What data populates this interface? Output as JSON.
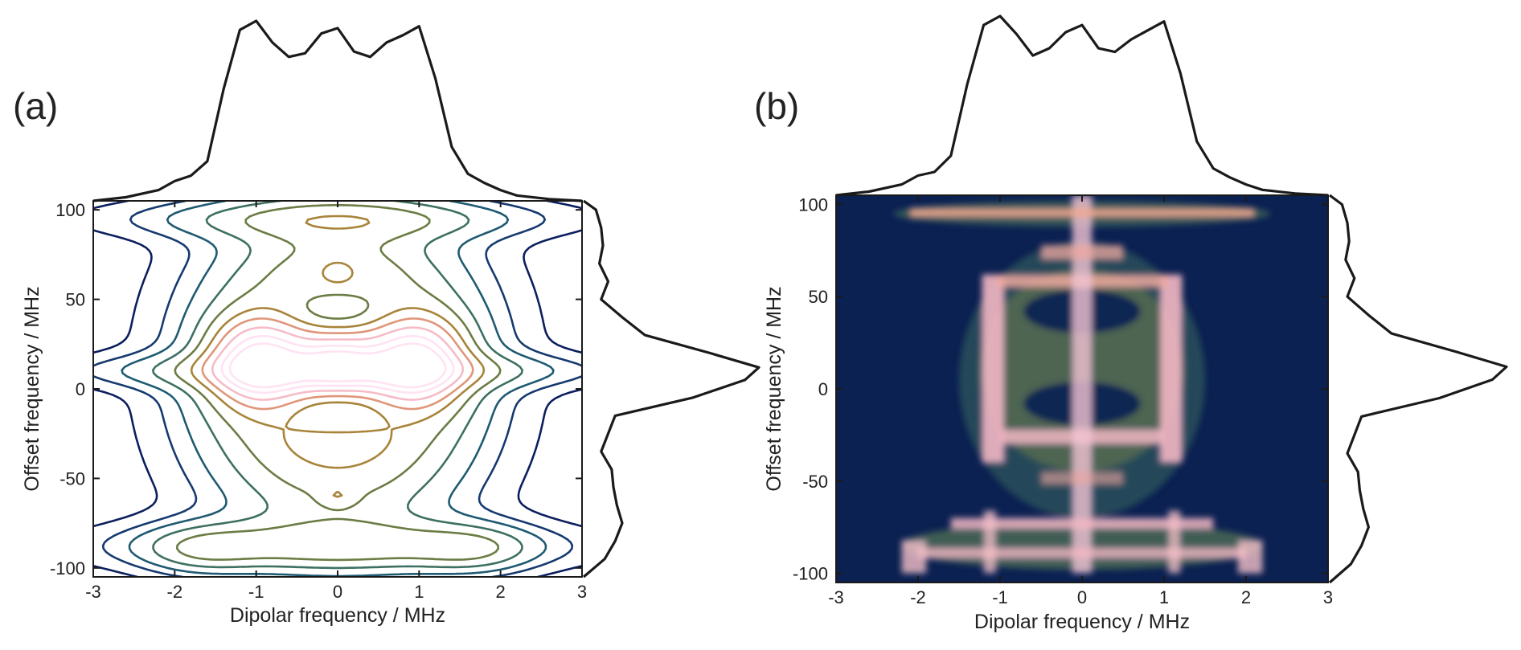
{
  "colors": {
    "background_dark": "#0b2152",
    "contour_scale": [
      "#0b1f5e",
      "#163a6f",
      "#1f5a72",
      "#3d7062",
      "#6b7c44",
      "#a8843a",
      "#e0967a",
      "#f5bcc8",
      "#ffe3f3"
    ],
    "projection_line": "#1a1a1a",
    "axis": "#1a1a1a"
  },
  "chart_data": [
    {
      "id": "a",
      "panel_label": "(a)",
      "type": "contour",
      "xlabel": "Dipolar frequency / MHz",
      "ylabel": "Offset frequency / MHz",
      "xlim": [
        -3,
        3
      ],
      "ylim": [
        -105,
        105
      ],
      "xticks": [
        -3,
        -2,
        -1,
        0,
        1,
        2,
        3
      ],
      "yticks": [
        -100,
        -50,
        0,
        50,
        100
      ],
      "contour_levels": [
        0.05,
        0.1,
        0.15,
        0.22,
        0.3,
        0.4,
        0.5,
        0.62,
        0.75,
        0.87
      ],
      "top_projection": {
        "x": [
          -3,
          -2.6,
          -2.2,
          -2.0,
          -1.8,
          -1.6,
          -1.4,
          -1.2,
          -1.0,
          -0.8,
          -0.6,
          -0.4,
          -0.2,
          0,
          0.2,
          0.4,
          0.6,
          0.8,
          1.0,
          1.2,
          1.4,
          1.6,
          1.8,
          2.0,
          2.2,
          2.6,
          3
        ],
        "y": [
          0.0,
          0.02,
          0.06,
          0.11,
          0.14,
          0.22,
          0.62,
          0.95,
          1.0,
          0.88,
          0.8,
          0.82,
          0.93,
          0.96,
          0.83,
          0.8,
          0.88,
          0.92,
          0.97,
          0.68,
          0.3,
          0.15,
          0.1,
          0.06,
          0.03,
          0.01,
          0.0
        ]
      },
      "right_projection": {
        "offset": [
          -105,
          -95,
          -85,
          -75,
          -65,
          -55,
          -45,
          -35,
          -25,
          -15,
          -5,
          5,
          12,
          20,
          30,
          40,
          50,
          60,
          70,
          80,
          90,
          100,
          105
        ],
        "value": [
          0.0,
          0.12,
          0.18,
          0.22,
          0.19,
          0.17,
          0.16,
          0.1,
          0.14,
          0.18,
          0.62,
          0.92,
          1.0,
          0.72,
          0.35,
          0.22,
          0.1,
          0.14,
          0.09,
          0.11,
          0.1,
          0.07,
          0.0
        ]
      }
    },
    {
      "id": "b",
      "panel_label": "(b)",
      "type": "heatmap",
      "xlabel": "Dipolar frequency / MHz",
      "ylabel": "Offset frequency / MHz",
      "xlim": [
        -3,
        3
      ],
      "ylim": [
        -105,
        105
      ],
      "xticks": [
        -3,
        -2,
        -1,
        0,
        1,
        2,
        3
      ],
      "yticks": [
        -100,
        -50,
        0,
        50,
        100
      ],
      "top_projection": {
        "x": [
          -3,
          -2.6,
          -2.2,
          -2.0,
          -1.8,
          -1.6,
          -1.4,
          -1.2,
          -1.0,
          -0.8,
          -0.6,
          -0.4,
          -0.2,
          0,
          0.2,
          0.4,
          0.6,
          0.8,
          1.0,
          1.2,
          1.4,
          1.6,
          1.8,
          2.0,
          2.2,
          2.6,
          3
        ],
        "y": [
          0.0,
          0.02,
          0.06,
          0.11,
          0.13,
          0.22,
          0.62,
          0.95,
          1.0,
          0.9,
          0.78,
          0.82,
          0.91,
          0.95,
          0.82,
          0.8,
          0.87,
          0.92,
          0.97,
          0.68,
          0.3,
          0.15,
          0.1,
          0.06,
          0.03,
          0.01,
          0.0
        ]
      },
      "right_projection": {
        "offset": [
          -105,
          -95,
          -85,
          -75,
          -65,
          -55,
          -45,
          -35,
          -25,
          -15,
          -5,
          5,
          12,
          20,
          30,
          40,
          50,
          60,
          70,
          80,
          90,
          100,
          105
        ],
        "value": [
          0.0,
          0.12,
          0.18,
          0.22,
          0.19,
          0.17,
          0.16,
          0.1,
          0.14,
          0.18,
          0.62,
          0.92,
          1.0,
          0.72,
          0.35,
          0.22,
          0.1,
          0.14,
          0.09,
          0.11,
          0.1,
          0.07,
          0.0
        ]
      }
    }
  ]
}
